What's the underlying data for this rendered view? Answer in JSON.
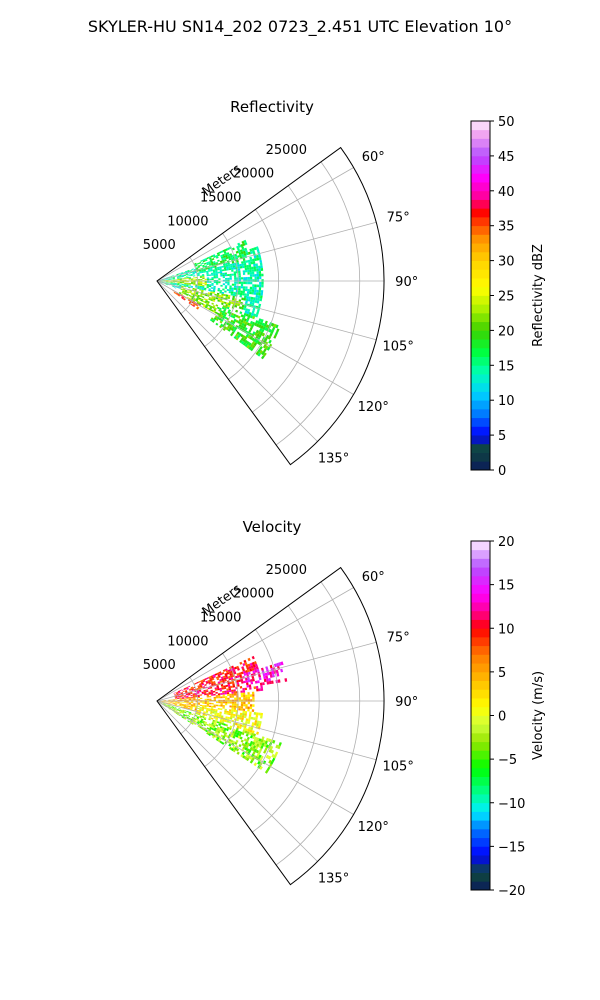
{
  "figure": {
    "title": "SKYLER-HU  SN14_202  0723_2.451 UTC Elevation 10°"
  },
  "chart_data": [
    {
      "type": "heatmap",
      "projection": "polar-sector",
      "title": "Reflectivity",
      "radial_label": "Meters",
      "radial_ticks": [
        "5000",
        "10000",
        "15000",
        "20000",
        "25000"
      ],
      "radial_tick_values": [
        5000,
        10000,
        15000,
        20000,
        25000
      ],
      "r_max": 28000,
      "azimuth_ticks": [
        "60°",
        "75°",
        "90°",
        "105°",
        "120°",
        "135°"
      ],
      "azimuth_tick_values": [
        60,
        75,
        90,
        105,
        120,
        135
      ],
      "azimuth_range": [
        54,
        144
      ],
      "grid": true,
      "colorbar": {
        "label": "Reflectivity dBZ",
        "range": [
          0,
          50
        ],
        "ticks": [
          "0",
          "5",
          "10",
          "15",
          "20",
          "25",
          "30",
          "35",
          "40",
          "45",
          "50"
        ],
        "stops": [
          {
            "v": 0,
            "color": "#0b1a5c"
          },
          {
            "v": 3,
            "color": "#0f4a3a"
          },
          {
            "v": 5,
            "color": "#0000ff"
          },
          {
            "v": 8,
            "color": "#0078ff"
          },
          {
            "v": 11,
            "color": "#00d2ff"
          },
          {
            "v": 14,
            "color": "#00ffb4"
          },
          {
            "v": 17,
            "color": "#00ff3c"
          },
          {
            "v": 20,
            "color": "#3cd200"
          },
          {
            "v": 23,
            "color": "#aaf000"
          },
          {
            "v": 26,
            "color": "#ffff00"
          },
          {
            "v": 30,
            "color": "#ffd200"
          },
          {
            "v": 33,
            "color": "#ff9600"
          },
          {
            "v": 35,
            "color": "#ff5000"
          },
          {
            "v": 37,
            "color": "#ff0000"
          },
          {
            "v": 39,
            "color": "#ff0096"
          },
          {
            "v": 42,
            "color": "#ff00ff"
          },
          {
            "v": 45,
            "color": "#b450ff"
          },
          {
            "v": 48,
            "color": "#f0a0f0"
          },
          {
            "v": 50,
            "color": "#fff0ff"
          }
        ]
      },
      "echo_regions": [
        {
          "az": [
            70,
            110
          ],
          "r": [
            0,
            13000
          ],
          "value": 14
        },
        {
          "az": [
            64,
            76
          ],
          "r": [
            5000,
            12000
          ],
          "value": 17
        },
        {
          "az": [
            84,
            96
          ],
          "r": [
            0,
            6000
          ],
          "value": 23
        },
        {
          "az": [
            100,
            118
          ],
          "r": [
            3000,
            11000
          ],
          "value": 22
        },
        {
          "az": [
            110,
            126
          ],
          "r": [
            8000,
            16000
          ],
          "value": 19
        },
        {
          "az": [
            118,
            124
          ],
          "r": [
            2000,
            6000
          ],
          "value": 36
        }
      ]
    },
    {
      "type": "heatmap",
      "projection": "polar-sector",
      "title": "Velocity",
      "radial_label": "Meters",
      "radial_ticks": [
        "5000",
        "10000",
        "15000",
        "20000",
        "25000"
      ],
      "radial_tick_values": [
        5000,
        10000,
        15000,
        20000,
        25000
      ],
      "r_max": 28000,
      "azimuth_ticks": [
        "60°",
        "75°",
        "90°",
        "105°",
        "120°",
        "135°"
      ],
      "azimuth_tick_values": [
        60,
        75,
        90,
        105,
        120,
        135
      ],
      "azimuth_range": [
        54,
        144
      ],
      "grid": true,
      "colorbar": {
        "label": "Velocity (m/s)",
        "range": [
          -20,
          20
        ],
        "ticks": [
          "−20",
          "−15",
          "−10",
          "−5",
          "0",
          "5",
          "10",
          "15",
          "20"
        ],
        "stops": [
          {
            "v": -20,
            "color": "#0b1a5c"
          },
          {
            "v": -18,
            "color": "#0f4a3a"
          },
          {
            "v": -16,
            "color": "#0000ff"
          },
          {
            "v": -13,
            "color": "#0078ff"
          },
          {
            "v": -11,
            "color": "#00eeff"
          },
          {
            "v": -9,
            "color": "#00ff96"
          },
          {
            "v": -6,
            "color": "#00ff00"
          },
          {
            "v": -3,
            "color": "#96e600"
          },
          {
            "v": -1,
            "color": "#d2ff3c"
          },
          {
            "v": 1,
            "color": "#ffff00"
          },
          {
            "v": 4,
            "color": "#ffbe00"
          },
          {
            "v": 7,
            "color": "#ff7800"
          },
          {
            "v": 10,
            "color": "#ff0000"
          },
          {
            "v": 12,
            "color": "#ff0096"
          },
          {
            "v": 14,
            "color": "#ff00ff"
          },
          {
            "v": 17,
            "color": "#b450ff"
          },
          {
            "v": 20,
            "color": "#fff0ff"
          }
        ]
      },
      "echo_regions": [
        {
          "az": [
            64,
            84
          ],
          "r": [
            2000,
            13000
          ],
          "value": 10
        },
        {
          "az": [
            72,
            80
          ],
          "r": [
            11000,
            16000
          ],
          "value": 13
        },
        {
          "az": [
            84,
            104
          ],
          "r": [
            0,
            12000
          ],
          "value": 4
        },
        {
          "az": [
            96,
            110
          ],
          "r": [
            5000,
            13000
          ],
          "value": 1
        },
        {
          "az": [
            108,
            122
          ],
          "r": [
            0,
            16000
          ],
          "value": -3
        }
      ]
    }
  ]
}
